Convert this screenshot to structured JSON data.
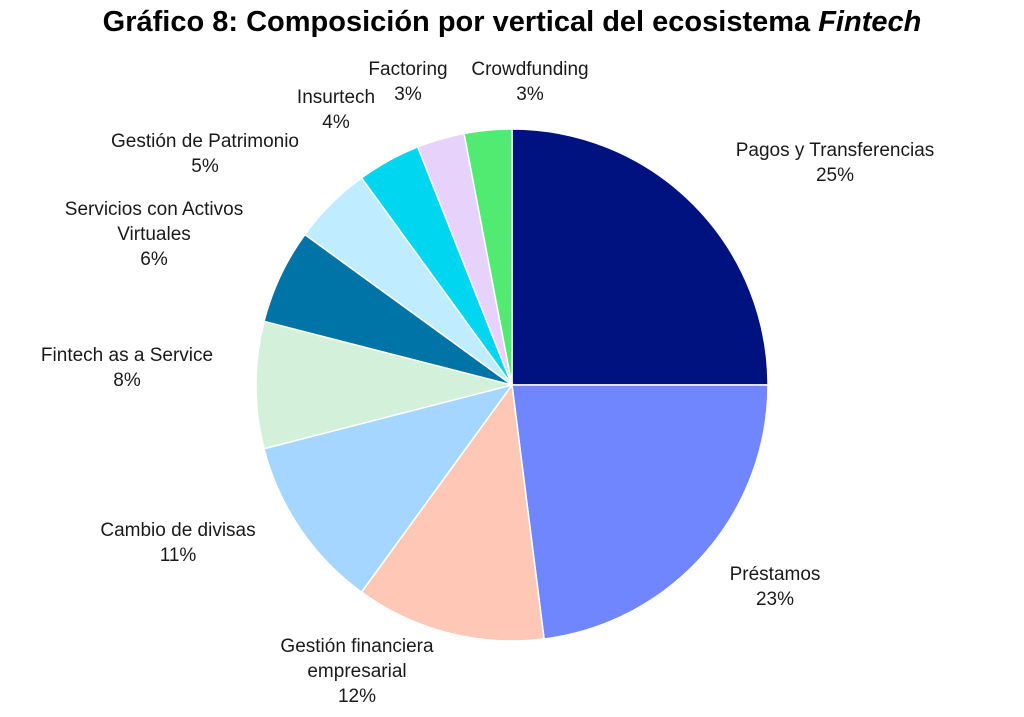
{
  "chart_data": {
    "type": "pie",
    "title_main": "Gráfico 8: Composición por vertical del ecosistema",
    "title_italic": "Fintech",
    "slices": [
      {
        "label": [
          "Pagos y Transferencias"
        ],
        "pct_text": "25%",
        "value": 25,
        "color": "#001180"
      },
      {
        "label": [
          "Préstamos"
        ],
        "pct_text": "23%",
        "value": 23,
        "color": "#7086FF"
      },
      {
        "label": [
          "Gestión financiera",
          "empresarial"
        ],
        "pct_text": "12%",
        "value": 12,
        "color": "#FFC7B5"
      },
      {
        "label": [
          "Cambio de divisas"
        ],
        "pct_text": "11%",
        "value": 11,
        "color": "#A4D6FF"
      },
      {
        "label": [
          "Fintech as a Service"
        ],
        "pct_text": "8%",
        "value": 8,
        "color": "#D2F0DA"
      },
      {
        "label": [
          "Servicios con Activos",
          "Virtuales"
        ],
        "pct_text": "6%",
        "value": 6,
        "color": "#0074A6"
      },
      {
        "label": [
          "Gestión de Patrimonio"
        ],
        "pct_text": "5%",
        "value": 5,
        "color": "#C0ECFF"
      },
      {
        "label": [
          "Insurtech"
        ],
        "pct_text": "4%",
        "value": 4,
        "color": "#00D6EF"
      },
      {
        "label": [
          "Factoring"
        ],
        "pct_text": "3%",
        "value": 3,
        "color": "#E6D2FA"
      },
      {
        "label": [
          "Crowdfunding"
        ],
        "pct_text": "3%",
        "value": 3,
        "color": "#52EB72"
      }
    ]
  }
}
